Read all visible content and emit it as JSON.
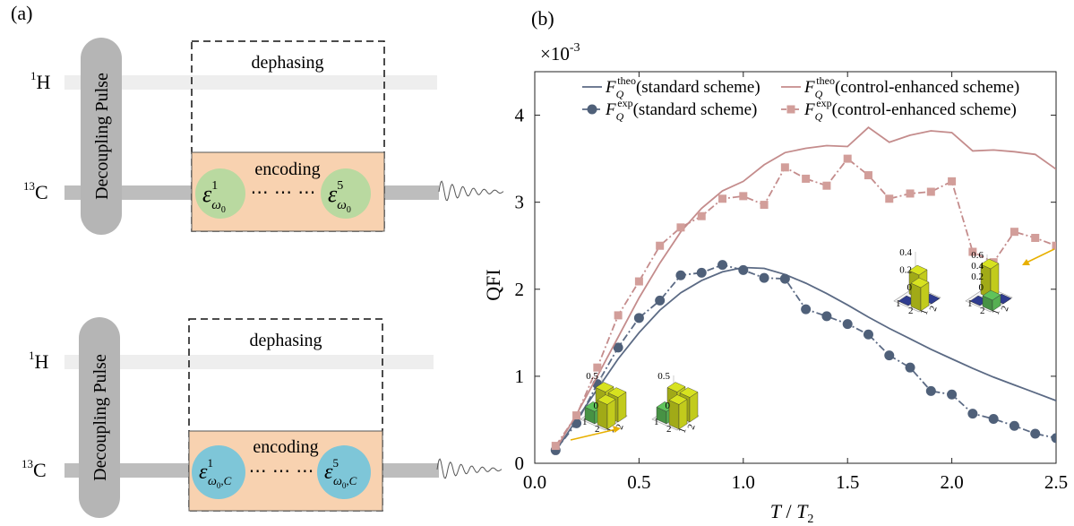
{
  "panel_a": {
    "label": "(a)",
    "circuits": [
      {
        "h_label_sup": "1",
        "h_label": "H",
        "c_label_sup": "13",
        "c_label": "C",
        "pulse_label": "Decoupling Pulse",
        "dephasing_label": "dephasing",
        "encoding_label": "encoding",
        "dots": "⋯ ⋯ ⋯",
        "op_left": {
          "base": "ε",
          "sup": "1",
          "sub": "ω",
          "subsub": "0",
          "tail": ""
        },
        "op_right": {
          "base": "ε",
          "sup": "5",
          "sub": "ω",
          "subsub": "0",
          "tail": ""
        },
        "circle_color": "#b9d9a0"
      },
      {
        "h_label_sup": "1",
        "h_label": "H",
        "c_label_sup": "13",
        "c_label": "C",
        "pulse_label": "Decoupling Pulse",
        "dephasing_label": "dephasing",
        "encoding_label": "encoding",
        "dots": "⋯ ⋯ ⋯",
        "op_left": {
          "base": "ε",
          "sup": "1",
          "sub": "ω",
          "subsub": "0",
          "tail": ",C"
        },
        "op_right": {
          "base": "ε",
          "sup": "5",
          "sub": "ω",
          "subsub": "0",
          "tail": ",C"
        },
        "circle_color": "#7ec6d8"
      }
    ],
    "colors": {
      "box_fill": "#f8d2b0",
      "pulse": "#b5b5b5",
      "wire_c": "#bdbdbd",
      "wire_h": "#eeeeee"
    }
  },
  "panel_b": {
    "label": "(b)",
    "exponent_text": "×10",
    "exponent_power": "-3",
    "legend": [
      {
        "sym": "F",
        "sub": "Q",
        "sup": "theo",
        "text": "(standard scheme)"
      },
      {
        "sym": "F",
        "sub": "Q",
        "sup": "exp",
        "text": "(standard scheme)"
      },
      {
        "sym": "F",
        "sub": "Q",
        "sup": "theo",
        "text": "(control-enhanced scheme)"
      },
      {
        "sym": "F",
        "sub": "Q",
        "sup": "exp",
        "text": "(control-enhanced scheme)"
      }
    ],
    "insets": [
      {
        "zticks": [
          "0.5",
          "0"
        ],
        "xticks": [
          "1",
          "2"
        ],
        "yticks": [
          "1",
          "2"
        ],
        "heights": [
          0.5,
          0.5,
          0.25,
          0.5
        ]
      },
      {
        "zticks": [
          "0.5",
          "0"
        ],
        "xticks": [
          "1",
          "2"
        ],
        "yticks": [
          "1",
          "2"
        ],
        "heights": [
          0.5,
          0.5,
          0.25,
          0.5
        ]
      },
      {
        "zticks": [
          "0.4",
          "0.2",
          "0"
        ],
        "xticks": [
          "1",
          "2"
        ],
        "yticks": [
          "1",
          "2"
        ],
        "heights": [
          0.4,
          0.0,
          0.0,
          0.4
        ]
      },
      {
        "zticks": [
          "0.6",
          "0.4",
          "0.2",
          "0"
        ],
        "xticks": [
          "1",
          "2"
        ],
        "yticks": [
          "1",
          "2"
        ],
        "heights": [
          0.55,
          0.0,
          0.0,
          0.2
        ]
      }
    ]
  },
  "chart_data": {
    "type": "line",
    "xlabel": "T / T₂",
    "xlabel_main": "T",
    "xlabel_sep": " / ",
    "xlabel_denom": "T",
    "xlabel_denom_sub": "2",
    "ylabel": "QFI",
    "xlim": [
      0,
      2.5
    ],
    "ylim": [
      0,
      4.5
    ],
    "xticks": [
      0,
      0.5,
      1.0,
      1.5,
      2.0,
      2.5
    ],
    "xtick_labels": [
      "0.0",
      "0.5",
      "1.0",
      "1.5",
      "2.0",
      "2.5"
    ],
    "yticks": [
      0,
      1,
      2,
      3,
      4
    ],
    "ytick_labels": [
      "0",
      "1",
      "2",
      "3",
      "4"
    ],
    "series": [
      {
        "name": "F_Q^theo (standard scheme)",
        "color": "#5b6a84",
        "style": "solid",
        "marker": "none",
        "x": [
          0.1,
          0.2,
          0.3,
          0.4,
          0.5,
          0.6,
          0.7,
          0.8,
          0.9,
          1.0,
          1.1,
          1.2,
          1.3,
          1.4,
          1.5,
          1.6,
          1.7,
          1.8,
          1.9,
          2.0,
          2.1,
          2.2,
          2.3,
          2.4,
          2.5
        ],
        "y": [
          0.14,
          0.5,
          0.85,
          1.2,
          1.5,
          1.76,
          1.96,
          2.1,
          2.2,
          2.25,
          2.24,
          2.17,
          2.07,
          1.95,
          1.82,
          1.68,
          1.55,
          1.43,
          1.31,
          1.2,
          1.09,
          0.99,
          0.9,
          0.81,
          0.72
        ]
      },
      {
        "name": "F_Q^exp (standard scheme)",
        "color": "#5b6a84",
        "style": "dashdot",
        "marker": "circle",
        "x": [
          0.1,
          0.2,
          0.3,
          0.4,
          0.5,
          0.6,
          0.7,
          0.8,
          0.9,
          1.0,
          1.1,
          1.2,
          1.3,
          1.4,
          1.5,
          1.6,
          1.7,
          1.8,
          1.9,
          2.0,
          2.1,
          2.2,
          2.3,
          2.4,
          2.5
        ],
        "y": [
          0.15,
          0.46,
          0.91,
          1.33,
          1.67,
          1.87,
          2.16,
          2.19,
          2.28,
          2.22,
          2.13,
          2.12,
          1.77,
          1.69,
          1.6,
          1.48,
          1.24,
          1.1,
          0.83,
          0.79,
          0.57,
          0.51,
          0.43,
          0.34,
          0.29
        ]
      },
      {
        "name": "F_Q^theo (control-enhanced scheme)",
        "color": "#c48c8c",
        "style": "solid",
        "marker": "none",
        "x": [
          0.1,
          0.2,
          0.3,
          0.4,
          0.5,
          0.6,
          0.7,
          0.8,
          0.9,
          1.0,
          1.1,
          1.2,
          1.3,
          1.4,
          1.5,
          1.6,
          1.7,
          1.8,
          1.9,
          2.0,
          2.1,
          2.2,
          2.3,
          2.4,
          2.5
        ],
        "y": [
          0.16,
          0.56,
          1.0,
          1.45,
          1.9,
          2.3,
          2.66,
          2.93,
          3.13,
          3.24,
          3.43,
          3.57,
          3.62,
          3.65,
          3.64,
          3.86,
          3.69,
          3.77,
          3.82,
          3.8,
          3.59,
          3.6,
          3.58,
          3.55,
          3.38
        ]
      },
      {
        "name": "F_Q^exp (control-enhanced scheme)",
        "color": "#c48c8c",
        "style": "dashdot",
        "marker": "square",
        "x": [
          0.1,
          0.2,
          0.3,
          0.4,
          0.5,
          0.6,
          0.7,
          0.8,
          0.9,
          1.0,
          1.1,
          1.2,
          1.3,
          1.4,
          1.5,
          1.6,
          1.7,
          1.8,
          1.9,
          2.0,
          2.1,
          2.2,
          2.3,
          2.4,
          2.5
        ],
        "y": [
          0.2,
          0.55,
          1.1,
          1.7,
          2.09,
          2.5,
          2.71,
          2.84,
          3.04,
          3.07,
          2.97,
          3.4,
          3.27,
          3.19,
          3.5,
          3.31,
          3.04,
          3.1,
          3.12,
          3.24,
          2.43,
          2.31,
          2.66,
          2.59,
          2.5
        ]
      }
    ],
    "grid": false,
    "legend_position": "top"
  }
}
